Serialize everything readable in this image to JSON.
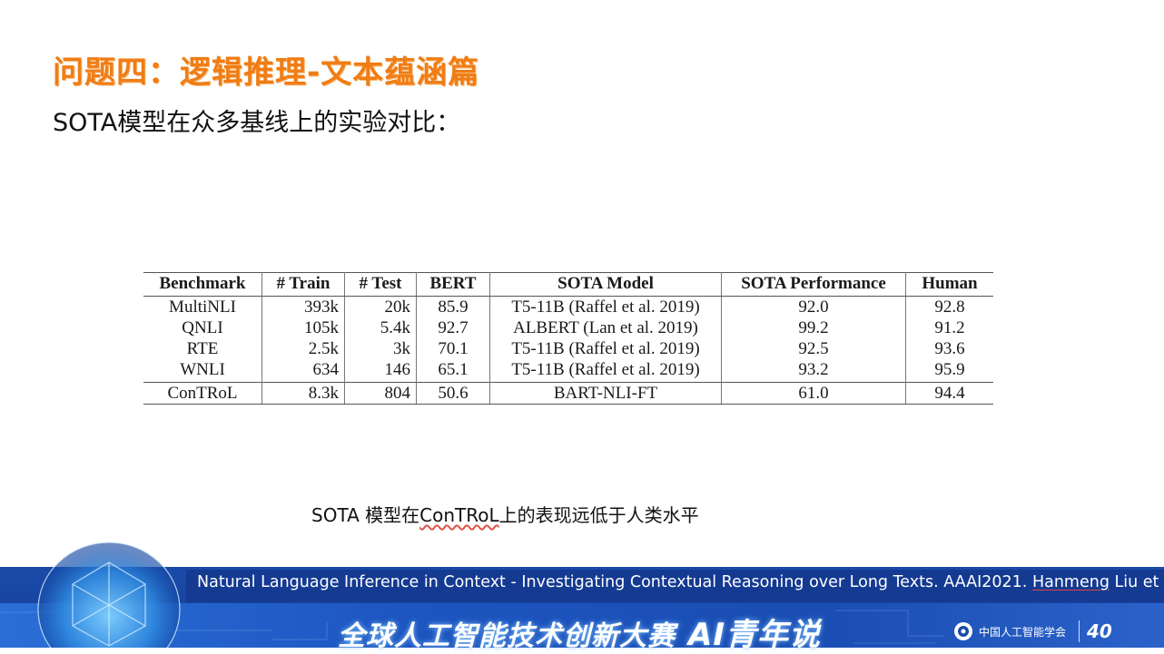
{
  "slide": {
    "title": "问题四：逻辑推理-文本蕴涵篇",
    "subtitle": "SOTA模型在众多基线上的实验对比：",
    "caption_before": "SOTA 模型在",
    "caption_link": "ConTRoL",
    "caption_after": "上的表现远低于人类水平"
  },
  "table": {
    "headers": [
      "Benchmark",
      "# Train",
      "# Test",
      "BERT",
      "SOTA Model",
      "SOTA Performance",
      "Human"
    ],
    "rows": [
      [
        "MultiNLI",
        "393k",
        "20k",
        "85.9",
        "T5-11B (Raffel et al. 2019)",
        "92.0",
        "92.8"
      ],
      [
        "QNLI",
        "105k",
        "5.4k",
        "92.7",
        "ALBERT (Lan et al. 2019)",
        "99.2",
        "91.2"
      ],
      [
        "RTE",
        "2.5k",
        "3k",
        "70.1",
        "T5-11B (Raffel et al. 2019)",
        "92.5",
        "93.6"
      ],
      [
        "WNLI",
        "634",
        "146",
        "65.1",
        "T5-11B (Raffel et al. 2019)",
        "93.2",
        "95.9"
      ],
      [
        "ConTRoL",
        "8.3k",
        "804",
        "50.6",
        "BART-NLI-FT",
        "61.0",
        "94.4"
      ]
    ]
  },
  "footer": {
    "reference_main": "Natural Language Inference in Context - Investigating Contextual Reasoning over Long Texts. AAAI2021. ",
    "reference_author": "Hanmeng",
    "reference_tail": " Liu et al.",
    "event_title": "全球人工智能技术创新大赛",
    "event_ai": "AI青年说",
    "org_name": "中国人工智能学会",
    "anniversary": "40",
    "colors": {
      "title_orange": "#f07d14",
      "banner_blue": "#1a4aa8"
    }
  }
}
